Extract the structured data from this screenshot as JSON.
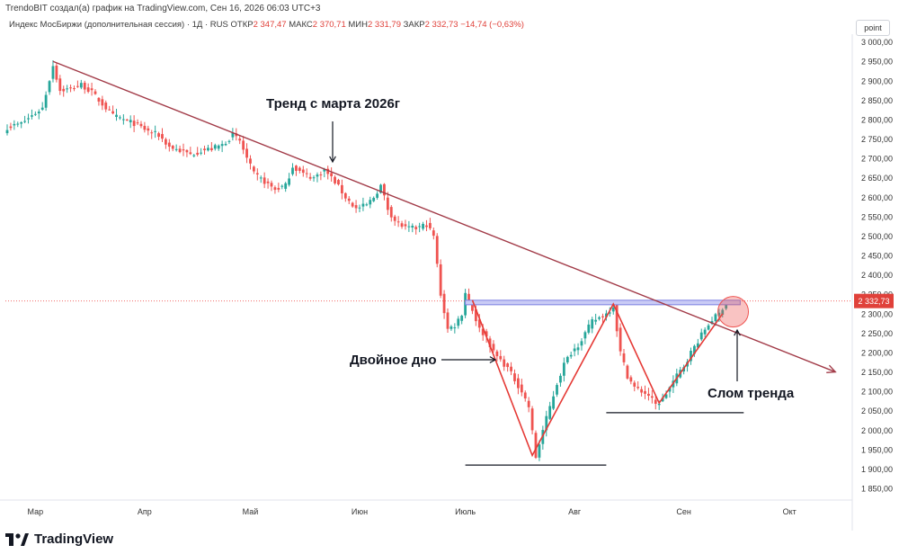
{
  "header": {
    "credit": "TrendoBIT создал(а) график на TradingView.com, Сен 16, 2026 06:03 UTC+3",
    "instrument": "Индекс МосБиржи (дополнительная сессия) · 1Д · RUS",
    "open_label": "ОТКР",
    "open": "2 347,47",
    "high_label": "МАКС",
    "high": "2 370,71",
    "low_label": "МИН",
    "low": "2 331,79",
    "close_label": "ЗАКР",
    "close": "2 332,73",
    "change": "−14,74 (−0,63%)",
    "unit_button": "point"
  },
  "footer": {
    "brand": "TradingView"
  },
  "colors": {
    "up": "#26a69a",
    "down": "#ef5350",
    "trend": "#a23b48",
    "zig": "#e53935",
    "level": "#7b7fe0",
    "price_tag": "#e0413a"
  },
  "chart_data": {
    "type": "candlestick",
    "timeframe": "1D",
    "ylim": [
      1820,
      3020
    ],
    "y_ticks": [
      "1 850,00",
      "1 900,00",
      "1 950,00",
      "2 000,00",
      "2 050,00",
      "2 100,00",
      "2 150,00",
      "2 200,00",
      "2 250,00",
      "2 300,00",
      "2 350,00",
      "2 400,00",
      "2 450,00",
      "2 500,00",
      "2 550,00",
      "2 600,00",
      "2 650,00",
      "2 700,00",
      "2 750,00",
      "2 800,00",
      "2 850,00",
      "2 900,00",
      "2 950,00",
      "3 000,00"
    ],
    "x_ticks": [
      {
        "label": "Мар",
        "index": 8
      },
      {
        "label": "Апр",
        "index": 39
      },
      {
        "label": "Май",
        "index": 69
      },
      {
        "label": "Июн",
        "index": 100
      },
      {
        "label": "Июль",
        "index": 130
      },
      {
        "label": "Авг",
        "index": 161
      },
      {
        "label": "Сен",
        "index": 192
      },
      {
        "label": "Окт",
        "index": 222
      }
    ],
    "last_price": "2 332,73",
    "close_path": [
      [
        0,
        2780
      ],
      [
        4,
        2790
      ],
      [
        7,
        2810
      ],
      [
        10,
        2830
      ],
      [
        13,
        2940
      ],
      [
        15,
        2875
      ],
      [
        18,
        2880
      ],
      [
        21,
        2890
      ],
      [
        24,
        2870
      ],
      [
        27,
        2840
      ],
      [
        30,
        2810
      ],
      [
        33,
        2800
      ],
      [
        36,
        2790
      ],
      [
        40,
        2770
      ],
      [
        43,
        2760
      ],
      [
        46,
        2730
      ],
      [
        49,
        2720
      ],
      [
        52,
        2710
      ],
      [
        55,
        2720
      ],
      [
        58,
        2725
      ],
      [
        61,
        2735
      ],
      [
        64,
        2760
      ],
      [
        66,
        2745
      ],
      [
        68,
        2700
      ],
      [
        70,
        2660
      ],
      [
        73,
        2640
      ],
      [
        76,
        2620
      ],
      [
        79,
        2630
      ],
      [
        81,
        2680
      ],
      [
        84,
        2660
      ],
      [
        87,
        2650
      ],
      [
        90,
        2670
      ],
      [
        93,
        2640
      ],
      [
        96,
        2600
      ],
      [
        99,
        2570
      ],
      [
        102,
        2580
      ],
      [
        104,
        2600
      ],
      [
        106,
        2630
      ],
      [
        108,
        2570
      ],
      [
        110,
        2540
      ],
      [
        113,
        2520
      ],
      [
        116,
        2520
      ],
      [
        119,
        2530
      ],
      [
        121,
        2500
      ],
      [
        123,
        2350
      ],
      [
        125,
        2260
      ],
      [
        127,
        2270
      ],
      [
        129,
        2300
      ],
      [
        130,
        2355
      ],
      [
        132,
        2310
      ],
      [
        134,
        2260
      ],
      [
        136,
        2240
      ],
      [
        138,
        2200
      ],
      [
        140,
        2180
      ],
      [
        142,
        2160
      ],
      [
        144,
        2130
      ],
      [
        146,
        2100
      ],
      [
        148,
        2060
      ],
      [
        150,
        1930
      ],
      [
        152,
        2000
      ],
      [
        154,
        2060
      ],
      [
        156,
        2120
      ],
      [
        158,
        2170
      ],
      [
        160,
        2200
      ],
      [
        162,
        2220
      ],
      [
        164,
        2250
      ],
      [
        166,
        2280
      ],
      [
        168,
        2290
      ],
      [
        170,
        2300
      ],
      [
        172,
        2320
      ],
      [
        174,
        2200
      ],
      [
        176,
        2140
      ],
      [
        178,
        2110
      ],
      [
        180,
        2100
      ],
      [
        182,
        2090
      ],
      [
        184,
        2065
      ],
      [
        186,
        2080
      ],
      [
        188,
        2110
      ],
      [
        190,
        2140
      ],
      [
        192,
        2165
      ],
      [
        194,
        2200
      ],
      [
        196,
        2230
      ],
      [
        198,
        2260
      ],
      [
        200,
        2285
      ],
      [
        202,
        2300
      ],
      [
        204,
        2332
      ]
    ],
    "trendline": {
      "start": [
        13,
        2950
      ],
      "end": [
        235,
        2150
      ]
    },
    "resistance_level": {
      "from": 130,
      "to": 208,
      "price": 2330
    },
    "double_bottom_lines": [
      {
        "from": 130,
        "to": 170,
        "price": 1910
      },
      {
        "from": 170,
        "to": 209,
        "price": 2045
      }
    ],
    "zigzag": [
      [
        132,
        2335
      ],
      [
        149,
        1935
      ],
      [
        172,
        2325
      ],
      [
        185,
        2070
      ],
      [
        203,
        2300
      ]
    ],
    "annotations": {
      "trend": "Тренд с марта 2026г",
      "double_bottom": "Двойное дно",
      "break": "Слом тренда"
    }
  }
}
